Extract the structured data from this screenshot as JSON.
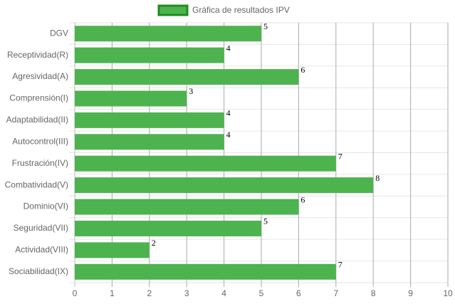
{
  "chart_data": {
    "type": "bar",
    "orientation": "horizontal",
    "categories": [
      "DGV",
      "Receptividad(R)",
      "Agresividad(A)",
      "Comprensión(I)",
      "Adaptabilidad(II)",
      "Autocontrol(III)",
      "Frustración(IV)",
      "Combatividad(V)",
      "Dominio(VI)",
      "Seguridad(VII)",
      "Actividad(VIII)",
      "Sociabilidad(IX)"
    ],
    "series": [
      {
        "name": "Gráfica de resultados IPV",
        "color": "#4db34f",
        "border_color": "#1e8c1e",
        "values": [
          5,
          4,
          6,
          3,
          4,
          4,
          7,
          8,
          6,
          5,
          2,
          7
        ]
      }
    ],
    "xlim": [
      0,
      10
    ],
    "xticks": [
      0,
      1,
      2,
      3,
      4,
      5,
      6,
      7,
      8,
      9,
      10
    ],
    "grid": true,
    "legend": "top"
  }
}
